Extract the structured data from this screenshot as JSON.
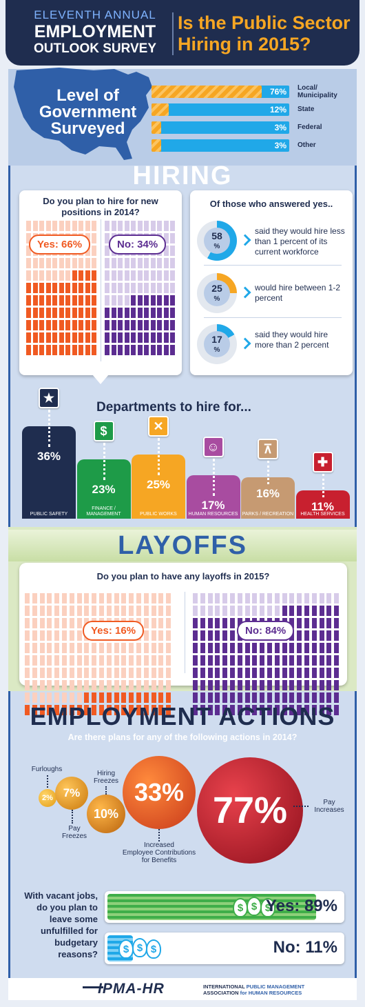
{
  "header": {
    "eyebrow": "ELEVENTH ANNUAL",
    "line1": "EMPLOYMENT",
    "line2": "OUTLOOK SURVEY",
    "question_line1": "Is the Public Sector",
    "question_line2": "Hiring in 2015?"
  },
  "level": {
    "title_line1": "Level of",
    "title_line2": "Government",
    "title_line3": "Surveyed",
    "rows": [
      {
        "label": "Local/ Municipality",
        "value": "76%",
        "pct": 76
      },
      {
        "label": "State",
        "value": "12%",
        "pct": 12
      },
      {
        "label": "Federal",
        "value": "3%",
        "pct": 3
      },
      {
        "label": "Other",
        "value": "3%",
        "pct": 3
      }
    ]
  },
  "hiring": {
    "heading": "HIRING",
    "question": "Do you plan to hire for new positions in 2014?",
    "yes_label": "Yes: 66%",
    "no_label": "No: 34%",
    "yes_pct": 66,
    "no_pct": 34,
    "yes_heading": "Of those who answered yes..",
    "breakdown": [
      {
        "value": "58",
        "unit": "%",
        "pct": 58,
        "text": "said they would hire less than 1 percent of its current workforce"
      },
      {
        "value": "25",
        "unit": "%",
        "pct": 25,
        "text": "would hire between 1-2 percent"
      },
      {
        "value": "17",
        "unit": "%",
        "pct": 17,
        "text": "said they would hire more than 2 percent"
      }
    ]
  },
  "departments": {
    "heading": "Departments to hire for...",
    "items": [
      {
        "label": "PUBLIC SAFETY",
        "value": "36%",
        "pct": 36,
        "color": "#1f2d4f",
        "icon": "badge-star-icon",
        "glyph": "★"
      },
      {
        "label": "FINANCE / MANAGEMENT",
        "value": "23%",
        "pct": 23,
        "color": "#1e9b48",
        "icon": "dollar-icon",
        "glyph": "$"
      },
      {
        "label": "PUBLIC WORKS",
        "value": "25%",
        "pct": 25,
        "color": "#f6a623",
        "icon": "tools-icon",
        "glyph": "✕"
      },
      {
        "label": "HUMAN RESOURCES",
        "value": "17%",
        "pct": 17,
        "color": "#a84ca0",
        "icon": "people-search-icon",
        "glyph": "☺"
      },
      {
        "label": "PARKS / RECREATION",
        "value": "16%",
        "pct": 16,
        "color": "#c69a72",
        "icon": "picnic-table-icon",
        "glyph": "⊼"
      },
      {
        "label": "HEALTH SERVICES",
        "value": "11%",
        "pct": 11,
        "color": "#c8202f",
        "icon": "health-cross-icon",
        "glyph": "✚"
      }
    ]
  },
  "layoffs": {
    "heading": "LAYOFFS",
    "question": "Do you plan to have any layoffs in 2015?",
    "yes_label": "Yes: 16%",
    "no_label": "No: 84%",
    "yes_pct": 16,
    "no_pct": 84
  },
  "actions": {
    "heading": "EMPLOYMENT ACTIONS",
    "question": "Are there plans for any of the following actions in 2014?",
    "items": [
      {
        "label": "Furloughs",
        "value": "2%"
      },
      {
        "label": "Pay Freezes",
        "value": "7%"
      },
      {
        "label": "Hiring Freezes",
        "value": "10%"
      },
      {
        "label": "Increased Employee Contributions for Benefits",
        "value": "33%"
      },
      {
        "label": "Pay Increases",
        "value": "77%"
      }
    ]
  },
  "vacant": {
    "question": "With vacant jobs, do you plan to leave some unfulfilled for budgetary reasons?",
    "yes_label": "Yes: 89%",
    "no_label": "No: 11%",
    "yes_pct": 89,
    "no_pct": 11
  },
  "footer": {
    "logo_text": "IPMA-HR",
    "org_line1_a": "INTERNATIONAL",
    "org_line1_b": " PUBLIC MANAGEMENT",
    "org_line2_a": "ASSOCIATION",
    "org_line2_b": " for HUMAN RESOURCES"
  }
}
